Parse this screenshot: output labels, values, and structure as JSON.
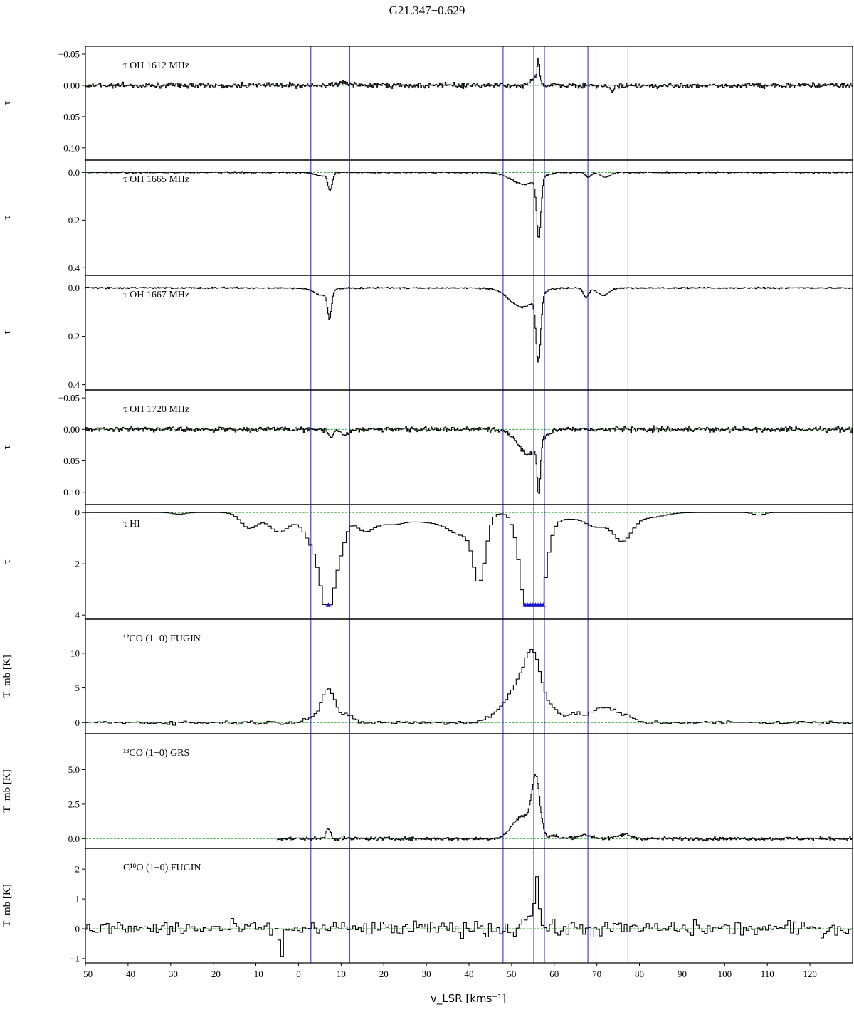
{
  "title": "G21.347−0.629",
  "chart_data": {
    "type": "line",
    "layout": "stacked-panels-shared-x",
    "xlabel": "v_LSR [kms⁻¹]",
    "xlim": [
      -50,
      130
    ],
    "x_ticks": [
      -50,
      -40,
      -30,
      -20,
      -10,
      0,
      10,
      20,
      30,
      40,
      50,
      60,
      70,
      80,
      90,
      100,
      110,
      120
    ],
    "x_tick_labels": [
      "−50",
      "−40",
      "−30",
      "−20",
      "−10",
      "0",
      "10",
      "20",
      "30",
      "40",
      "50",
      "60",
      "70",
      "80",
      "90",
      "100",
      "110",
      "120"
    ],
    "vertical_markers": [
      2.9,
      12.0,
      48.0,
      55.2,
      57.7,
      65.8,
      67.9,
      69.8,
      77.3
    ],
    "vertical_marker_color": "#2222cc",
    "baseline_color": "#22aa22",
    "trace_color": "#000000",
    "saturation_marker_color": "#1a1acc",
    "panels": [
      {
        "label": "τ OH 1612 MHz",
        "ylabel": "τ",
        "ylim": [
          0.115,
          -0.058
        ],
        "inverted": true,
        "y_ticks": [
          -0.05,
          0.0,
          0.05,
          0.1
        ],
        "y_tick_labels": [
          "−0.05",
          "0.00",
          "0.05",
          "0.10"
        ],
        "step": 0.22,
        "noise": 0.004,
        "x_start": -50,
        "features": [
          {
            "center": 55.5,
            "width": 0.9,
            "amp": -0.012
          },
          {
            "center": 56.3,
            "width": 0.25,
            "amp": -0.035
          },
          {
            "center": 73.5,
            "width": 0.6,
            "amp": 0.009
          },
          {
            "center": 10.5,
            "width": 1.2,
            "amp": -0.005
          }
        ]
      },
      {
        "label": "τ OH 1665 MHz",
        "ylabel": "τ",
        "ylim": [
          0.42,
          -0.04
        ],
        "inverted": true,
        "y_ticks": [
          0.0,
          0.2,
          0.4
        ],
        "y_tick_labels": [
          "0.0",
          "0.2",
          "0.4"
        ],
        "step": 0.22,
        "noise": 0.003,
        "x_start": -50,
        "features": [
          {
            "center": 7.4,
            "width": 0.5,
            "amp": 0.07
          },
          {
            "center": 5.5,
            "width": 1.5,
            "amp": 0.015
          },
          {
            "center": 53.0,
            "width": 3.0,
            "amp": 0.05
          },
          {
            "center": 56.4,
            "width": 0.5,
            "amp": 0.25
          },
          {
            "center": 68.0,
            "width": 0.6,
            "amp": 0.02
          },
          {
            "center": 72.0,
            "width": 1.2,
            "amp": 0.02
          }
        ]
      },
      {
        "label": "τ OH 1667 MHz",
        "ylabel": "τ",
        "ylim": [
          0.41,
          -0.04
        ],
        "inverted": true,
        "y_ticks": [
          0.0,
          0.2,
          0.4
        ],
        "y_tick_labels": [
          "0.0",
          "0.2",
          "0.4"
        ],
        "step": 0.22,
        "noise": 0.003,
        "x_start": -50,
        "features": [
          {
            "center": 7.3,
            "width": 0.45,
            "amp": 0.11
          },
          {
            "center": 5.5,
            "width": 1.8,
            "amp": 0.03
          },
          {
            "center": 52.5,
            "width": 3.0,
            "amp": 0.08
          },
          {
            "center": 56.3,
            "width": 0.55,
            "amp": 0.27
          },
          {
            "center": 67.5,
            "width": 0.6,
            "amp": 0.04
          },
          {
            "center": 71.5,
            "width": 1.4,
            "amp": 0.03
          }
        ]
      },
      {
        "label": "τ OH 1720 MHz",
        "ylabel": "τ",
        "ylim": [
          0.115,
          -0.058
        ],
        "inverted": true,
        "y_ticks": [
          -0.05,
          0.0,
          0.05,
          0.1
        ],
        "y_tick_labels": [
          "−0.05",
          "0.00",
          "0.05",
          "0.10"
        ],
        "step": 0.22,
        "noise": 0.004,
        "x_start": -50,
        "features": [
          {
            "center": 7.5,
            "width": 0.6,
            "amp": 0.012
          },
          {
            "center": 11.0,
            "width": 1.0,
            "amp": 0.008
          },
          {
            "center": 54.0,
            "width": 2.5,
            "amp": 0.04
          },
          {
            "center": 56.4,
            "width": 0.35,
            "amp": 0.08
          }
        ]
      },
      {
        "label": "τ HI",
        "ylabel": "τ",
        "ylim": [
          4.05,
          -0.2
        ],
        "inverted": true,
        "y_ticks": [
          0,
          2,
          4
        ],
        "y_tick_labels": [
          "0",
          "2",
          "4"
        ],
        "step": 0.8,
        "noise": 0.0,
        "x_start": -50,
        "saturation_cap": 3.6,
        "saturation_markers": [
          7.0,
          53.2,
          53.8,
          54.4,
          55.0,
          55.6,
          56.2,
          56.8,
          57.4
        ],
        "features": [
          {
            "center": -11.5,
            "width": 2.0,
            "amp": 0.6
          },
          {
            "center": -4.5,
            "width": 2.5,
            "amp": 0.75
          },
          {
            "center": 4.0,
            "width": 2.5,
            "amp": 1.3
          },
          {
            "center": 7.0,
            "width": 1.6,
            "amp": 3.2
          },
          {
            "center": 10.0,
            "width": 1.3,
            "amp": 1.0
          },
          {
            "center": 15.5,
            "width": 2.5,
            "amp": 0.7
          },
          {
            "center": 22.0,
            "width": 3.0,
            "amp": 0.4
          },
          {
            "center": 30.0,
            "width": 4.0,
            "amp": 0.35
          },
          {
            "center": 37.0,
            "width": 3.0,
            "amp": 0.45
          },
          {
            "center": 42.5,
            "width": 1.4,
            "amp": 2.3
          },
          {
            "center": 40.0,
            "width": 3.0,
            "amp": 0.5
          },
          {
            "center": 55.0,
            "width": 2.2,
            "amp": 6.0
          },
          {
            "center": 62.0,
            "width": 4.5,
            "amp": 0.25
          },
          {
            "center": 70.0,
            "width": 2.5,
            "amp": 0.5
          },
          {
            "center": 76.0,
            "width": 2.2,
            "amp": 1.05
          },
          {
            "center": 82.0,
            "width": 3.5,
            "amp": 0.2
          },
          {
            "center": -28.0,
            "width": 1.5,
            "amp": 0.06
          },
          {
            "center": 108.0,
            "width": 1.2,
            "amp": 0.1
          }
        ]
      },
      {
        "label": "¹²CO (1−0) FUGIN",
        "ylabel": "T_mb [K]",
        "ylim": [
          -1.2,
          14.5
        ],
        "inverted": false,
        "y_ticks": [
          0,
          5,
          10
        ],
        "y_tick_labels": [
          "0",
          "5",
          "10"
        ],
        "step": 0.65,
        "noise": 0.28,
        "x_start": -50,
        "features": [
          {
            "center": 7.0,
            "width": 1.5,
            "amp": 4.8
          },
          {
            "center": 3.0,
            "width": 2.0,
            "amp": 0.7
          },
          {
            "center": 11.0,
            "width": 1.6,
            "amp": 1.3
          },
          {
            "center": 47.0,
            "width": 2.5,
            "amp": 1.2
          },
          {
            "center": 51.5,
            "width": 2.4,
            "amp": 4.5
          },
          {
            "center": 55.2,
            "width": 2.0,
            "amp": 9.0
          },
          {
            "center": 60.0,
            "width": 1.5,
            "amp": 1.5
          },
          {
            "center": 65.0,
            "width": 2.5,
            "amp": 1.1
          },
          {
            "center": 72.0,
            "width": 2.8,
            "amp": 2.2
          },
          {
            "center": 77.5,
            "width": 1.5,
            "amp": 0.6
          },
          {
            "center": 10.0,
            "width": 0.9,
            "amp": -0.6
          }
        ]
      },
      {
        "label": "¹³CO (1−0) GRS",
        "ylabel": "T_mb [K]",
        "ylim": [
          -0.5,
          7.4
        ],
        "inverted": false,
        "y_ticks": [
          0.0,
          2.5,
          5.0
        ],
        "y_tick_labels": [
          "0.0",
          "2.5",
          "5.0"
        ],
        "step": 0.21,
        "noise": 0.12,
        "x_start": -5,
        "features": [
          {
            "center": 7.0,
            "width": 0.5,
            "amp": 0.8
          },
          {
            "center": 52.5,
            "width": 2.3,
            "amp": 1.6
          },
          {
            "center": 55.7,
            "width": 0.95,
            "amp": 4.0
          },
          {
            "center": 60.0,
            "width": 1.0,
            "amp": 0.2
          },
          {
            "center": 67.0,
            "width": 2.0,
            "amp": 0.25
          },
          {
            "center": 76.5,
            "width": 1.5,
            "amp": 0.3
          }
        ]
      },
      {
        "label": "C¹⁸O (1−0) FUGIN",
        "ylabel": "T_mb [K]",
        "ylim": [
          -1.05,
          2.6
        ],
        "inverted": false,
        "y_ticks": [
          -1,
          0,
          1,
          2
        ],
        "y_tick_labels": [
          "−1",
          "0",
          "1",
          "2"
        ],
        "step": 0.65,
        "noise": 0.25,
        "x_start": -50,
        "features": [
          {
            "center": 56.0,
            "width": 0.45,
            "amp": 1.7
          },
          {
            "center": 54.0,
            "width": 1.3,
            "amp": 0.45
          },
          {
            "center": -4.0,
            "width": 0.3,
            "amp": -1.3
          }
        ]
      }
    ]
  }
}
